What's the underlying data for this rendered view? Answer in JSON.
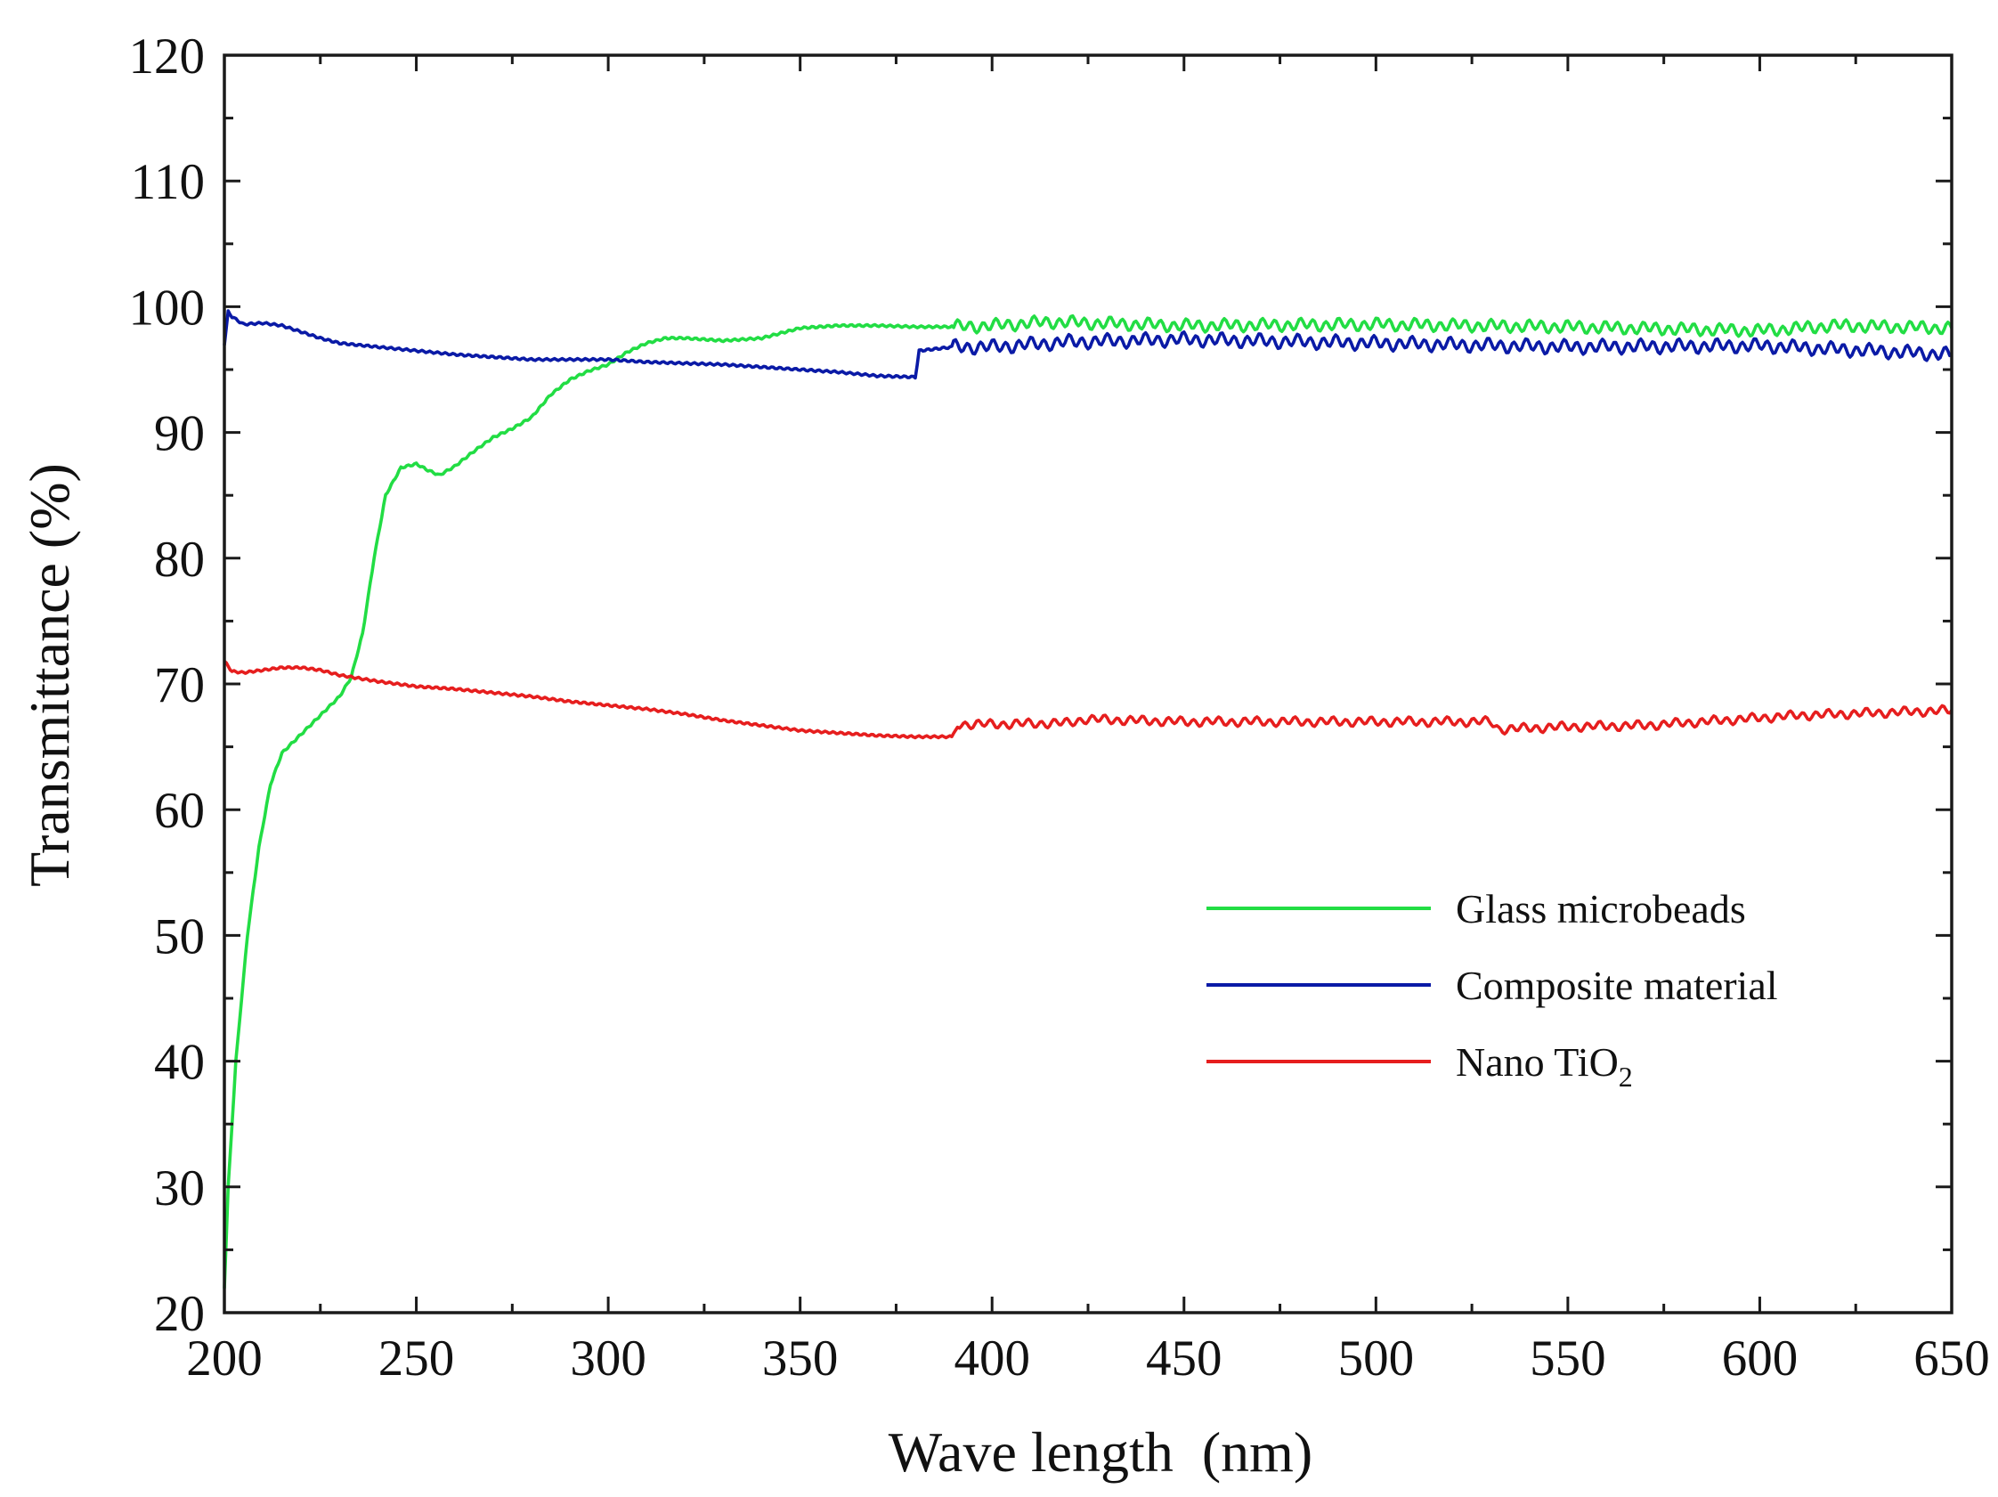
{
  "chart_data": {
    "type": "line",
    "title": "",
    "xlabel": "Wave length  (nm)",
    "ylabel": "Transmittance (%)",
    "xlim": [
      200,
      650
    ],
    "ylim": [
      20,
      120
    ],
    "x_ticks": [
      200,
      250,
      300,
      350,
      400,
      450,
      500,
      550,
      600,
      650
    ],
    "y_ticks": [
      20,
      30,
      40,
      50,
      60,
      70,
      80,
      90,
      100,
      110,
      120
    ],
    "grid": false,
    "legend_position": "center-right",
    "series": [
      {
        "name": "Glass microbeads",
        "color": "#22dd44",
        "noise": 0.55,
        "noise_from": 390,
        "points": [
          [
            200,
            22
          ],
          [
            201,
            30
          ],
          [
            203,
            40
          ],
          [
            206,
            50
          ],
          [
            209,
            57
          ],
          [
            212,
            62
          ],
          [
            215,
            64.5
          ],
          [
            220,
            66
          ],
          [
            225,
            67.5
          ],
          [
            230,
            69
          ],
          [
            233,
            70.5
          ],
          [
            236,
            74
          ],
          [
            239,
            80
          ],
          [
            242,
            85
          ],
          [
            246,
            87.2
          ],
          [
            250,
            87.5
          ],
          [
            253,
            87
          ],
          [
            256,
            86.6
          ],
          [
            260,
            87.3
          ],
          [
            265,
            88.5
          ],
          [
            270,
            89.6
          ],
          [
            275,
            90.3
          ],
          [
            280,
            91.2
          ],
          [
            285,
            93
          ],
          [
            290,
            94.2
          ],
          [
            295,
            94.9
          ],
          [
            300,
            95.4
          ],
          [
            305,
            96.4
          ],
          [
            310,
            97.1
          ],
          [
            315,
            97.5
          ],
          [
            320,
            97.5
          ],
          [
            330,
            97.3
          ],
          [
            340,
            97.5
          ],
          [
            350,
            98.3
          ],
          [
            360,
            98.5
          ],
          [
            370,
            98.5
          ],
          [
            380,
            98.4
          ],
          [
            390,
            98.4
          ],
          [
            400,
            98.5
          ],
          [
            415,
            98.8
          ],
          [
            450,
            98.5
          ],
          [
            500,
            98.6
          ],
          [
            550,
            98.4
          ],
          [
            600,
            98.1
          ],
          [
            620,
            98.5
          ],
          [
            650,
            98.3
          ]
        ]
      },
      {
        "name": "Composite material",
        "color": "#0a1aa6",
        "noise": 0.6,
        "noise_from": 390,
        "points": [
          [
            200,
            97
          ],
          [
            201,
            99.6
          ],
          [
            202,
            99.2
          ],
          [
            205,
            98.6
          ],
          [
            210,
            98.7
          ],
          [
            215,
            98.5
          ],
          [
            220,
            98
          ],
          [
            225,
            97.5
          ],
          [
            230,
            97.1
          ],
          [
            240,
            96.8
          ],
          [
            250,
            96.5
          ],
          [
            260,
            96.2
          ],
          [
            270,
            96
          ],
          [
            280,
            95.8
          ],
          [
            290,
            95.8
          ],
          [
            300,
            95.8
          ],
          [
            310,
            95.6
          ],
          [
            320,
            95.5
          ],
          [
            330,
            95.4
          ],
          [
            340,
            95.2
          ],
          [
            350,
            95
          ],
          [
            360,
            94.8
          ],
          [
            370,
            94.5
          ],
          [
            380,
            94.4
          ],
          [
            381,
            96.5
          ],
          [
            390,
            96.8
          ],
          [
            400,
            96.8
          ],
          [
            420,
            97.2
          ],
          [
            450,
            97.4
          ],
          [
            500,
            97.1
          ],
          [
            550,
            96.8
          ],
          [
            600,
            96.9
          ],
          [
            650,
            96.2
          ]
        ]
      },
      {
        "name": "Nano TiO",
        "name_subscript": "2",
        "color": "#e61e1e",
        "noise": 0.4,
        "noise_from": 390,
        "points": [
          [
            200,
            71.8
          ],
          [
            202,
            71
          ],
          [
            205,
            70.9
          ],
          [
            210,
            71.1
          ],
          [
            215,
            71.3
          ],
          [
            220,
            71.3
          ],
          [
            225,
            71.1
          ],
          [
            230,
            70.7
          ],
          [
            240,
            70.2
          ],
          [
            250,
            69.8
          ],
          [
            260,
            69.6
          ],
          [
            270,
            69.3
          ],
          [
            280,
            69
          ],
          [
            290,
            68.6
          ],
          [
            300,
            68.3
          ],
          [
            310,
            68
          ],
          [
            320,
            67.6
          ],
          [
            330,
            67.1
          ],
          [
            340,
            66.7
          ],
          [
            350,
            66.3
          ],
          [
            360,
            66.1
          ],
          [
            370,
            65.9
          ],
          [
            380,
            65.8
          ],
          [
            390,
            65.8
          ],
          [
            391,
            66.8
          ],
          [
            400,
            66.8
          ],
          [
            420,
            66.9
          ],
          [
            424,
            67.2
          ],
          [
            450,
            67
          ],
          [
            500,
            67
          ],
          [
            530,
            67
          ],
          [
            532,
            66.4
          ],
          [
            550,
            66.6
          ],
          [
            570,
            66.7
          ],
          [
            590,
            67.1
          ],
          [
            600,
            67.3
          ],
          [
            610,
            67.5
          ],
          [
            620,
            67.6
          ],
          [
            640,
            67.8
          ],
          [
            650,
            67.9
          ]
        ]
      }
    ]
  }
}
